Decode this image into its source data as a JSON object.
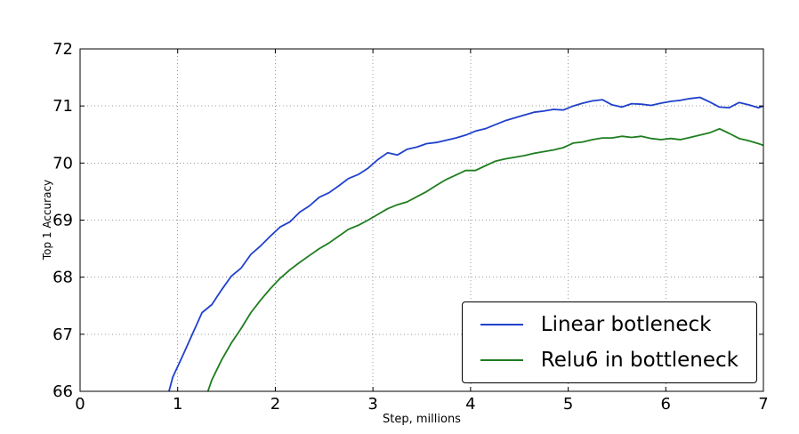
{
  "figure": {
    "background": "#ffffff",
    "axis_color": "#000000",
    "grid_color": "#999999"
  },
  "chart_data": {
    "type": "line",
    "title": "",
    "xlabel": "Step, millions",
    "ylabel": "Top 1 Accuracy",
    "xlim": [
      0,
      7
    ],
    "ylim": [
      66,
      72
    ],
    "x_ticks": [
      0,
      1,
      2,
      3,
      4,
      5,
      6,
      7
    ],
    "y_ticks": [
      66,
      67,
      68,
      69,
      70,
      71,
      72
    ],
    "grid": true,
    "legend": {
      "position": "lower right"
    },
    "series": [
      {
        "name": "Linear botleneck",
        "color": "#2040cc",
        "points": [
          [
            0.88,
            65.8
          ],
          [
            0.95,
            66.25
          ],
          [
            1.05,
            66.62
          ],
          [
            1.15,
            67.0
          ],
          [
            1.25,
            67.38
          ],
          [
            1.35,
            67.52
          ],
          [
            1.45,
            67.78
          ],
          [
            1.55,
            68.02
          ],
          [
            1.65,
            68.16
          ],
          [
            1.75,
            68.4
          ],
          [
            1.85,
            68.55
          ],
          [
            1.95,
            68.72
          ],
          [
            2.05,
            68.88
          ],
          [
            2.15,
            68.97
          ],
          [
            2.25,
            69.14
          ],
          [
            2.35,
            69.25
          ],
          [
            2.45,
            69.4
          ],
          [
            2.55,
            69.48
          ],
          [
            2.65,
            69.6
          ],
          [
            2.75,
            69.73
          ],
          [
            2.85,
            69.8
          ],
          [
            2.95,
            69.91
          ],
          [
            3.05,
            70.06
          ],
          [
            3.15,
            70.18
          ],
          [
            3.25,
            70.14
          ],
          [
            3.35,
            70.24
          ],
          [
            3.45,
            70.28
          ],
          [
            3.55,
            70.34
          ],
          [
            3.65,
            70.36
          ],
          [
            3.75,
            70.4
          ],
          [
            3.85,
            70.44
          ],
          [
            3.95,
            70.49
          ],
          [
            4.05,
            70.56
          ],
          [
            4.15,
            70.6
          ],
          [
            4.25,
            70.67
          ],
          [
            4.35,
            70.74
          ],
          [
            4.45,
            70.79
          ],
          [
            4.55,
            70.84
          ],
          [
            4.65,
            70.89
          ],
          [
            4.75,
            70.91
          ],
          [
            4.85,
            70.94
          ],
          [
            4.95,
            70.93
          ],
          [
            5.05,
            71.0
          ],
          [
            5.15,
            71.05
          ],
          [
            5.25,
            71.09
          ],
          [
            5.35,
            71.11
          ],
          [
            5.45,
            71.02
          ],
          [
            5.55,
            70.98
          ],
          [
            5.65,
            71.04
          ],
          [
            5.75,
            71.03
          ],
          [
            5.85,
            71.01
          ],
          [
            5.95,
            71.05
          ],
          [
            6.05,
            71.08
          ],
          [
            6.15,
            71.1
          ],
          [
            6.25,
            71.13
          ],
          [
            6.35,
            71.15
          ],
          [
            6.45,
            71.07
          ],
          [
            6.55,
            70.98
          ],
          [
            6.65,
            70.97
          ],
          [
            6.75,
            71.06
          ],
          [
            6.85,
            71.02
          ],
          [
            6.95,
            70.97
          ],
          [
            7.0,
            71.0
          ]
        ]
      },
      {
        "name": "Relu6 in bottleneck",
        "color": "#1e7d1e",
        "points": [
          [
            1.28,
            65.85
          ],
          [
            1.35,
            66.2
          ],
          [
            1.45,
            66.55
          ],
          [
            1.55,
            66.85
          ],
          [
            1.65,
            67.1
          ],
          [
            1.75,
            67.38
          ],
          [
            1.85,
            67.6
          ],
          [
            1.95,
            67.8
          ],
          [
            2.05,
            67.98
          ],
          [
            2.15,
            68.13
          ],
          [
            2.25,
            68.26
          ],
          [
            2.35,
            68.38
          ],
          [
            2.45,
            68.5
          ],
          [
            2.55,
            68.6
          ],
          [
            2.65,
            68.72
          ],
          [
            2.75,
            68.84
          ],
          [
            2.85,
            68.91
          ],
          [
            2.95,
            69.0
          ],
          [
            3.05,
            69.1
          ],
          [
            3.15,
            69.2
          ],
          [
            3.25,
            69.27
          ],
          [
            3.35,
            69.32
          ],
          [
            3.45,
            69.41
          ],
          [
            3.55,
            69.5
          ],
          [
            3.65,
            69.61
          ],
          [
            3.75,
            69.71
          ],
          [
            3.85,
            69.79
          ],
          [
            3.95,
            69.87
          ],
          [
            4.05,
            69.87
          ],
          [
            4.15,
            69.95
          ],
          [
            4.25,
            70.03
          ],
          [
            4.35,
            70.07
          ],
          [
            4.45,
            70.1
          ],
          [
            4.55,
            70.13
          ],
          [
            4.65,
            70.17
          ],
          [
            4.75,
            70.2
          ],
          [
            4.85,
            70.23
          ],
          [
            4.95,
            70.27
          ],
          [
            5.05,
            70.35
          ],
          [
            5.15,
            70.37
          ],
          [
            5.25,
            70.41
          ],
          [
            5.35,
            70.44
          ],
          [
            5.45,
            70.44
          ],
          [
            5.55,
            70.47
          ],
          [
            5.65,
            70.45
          ],
          [
            5.75,
            70.47
          ],
          [
            5.85,
            70.43
          ],
          [
            5.95,
            70.41
          ],
          [
            6.05,
            70.43
          ],
          [
            6.15,
            70.41
          ],
          [
            6.25,
            70.45
          ],
          [
            6.35,
            70.49
          ],
          [
            6.45,
            70.53
          ],
          [
            6.55,
            70.6
          ],
          [
            6.65,
            70.52
          ],
          [
            6.75,
            70.43
          ],
          [
            6.85,
            70.39
          ],
          [
            6.95,
            70.34
          ],
          [
            7.0,
            70.31
          ]
        ]
      }
    ]
  }
}
